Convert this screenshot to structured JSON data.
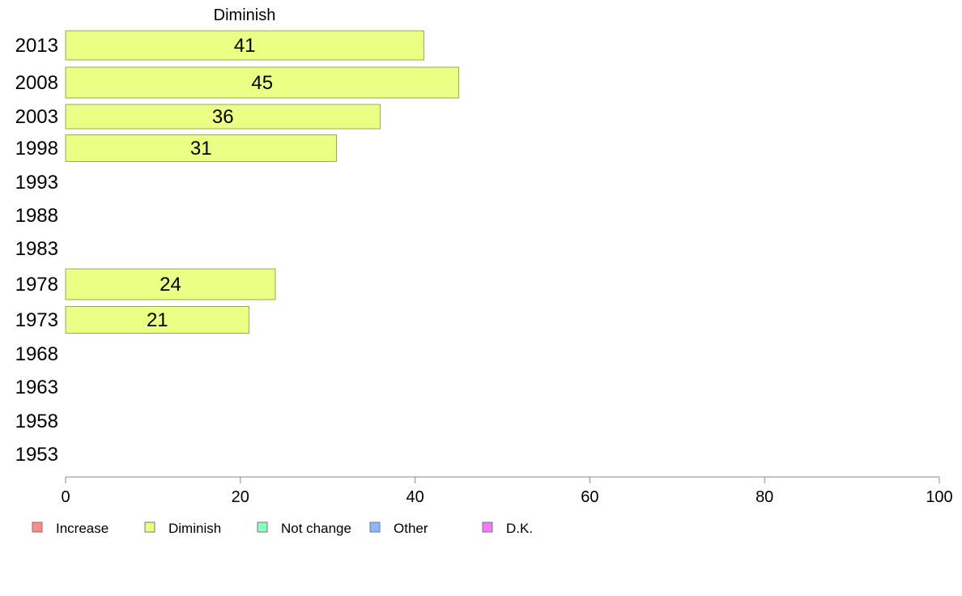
{
  "chart_data": {
    "type": "bar",
    "orientation": "horizontal",
    "title": "Diminish",
    "categories": [
      "2013",
      "2008",
      "2003",
      "1998",
      "1993",
      "1988",
      "1983",
      "1978",
      "1973",
      "1968",
      "1963",
      "1958",
      "1953"
    ],
    "series": [
      {
        "name": "Diminish",
        "color": "#ebff85",
        "values": [
          41,
          45,
          36,
          31,
          null,
          null,
          null,
          24,
          21,
          null,
          null,
          null,
          null
        ],
        "data_labels": [
          "41",
          "45",
          "36",
          "31",
          "",
          "",
          "",
          "24",
          "21",
          "",
          "",
          "",
          ""
        ]
      }
    ],
    "xlim": [
      0,
      100
    ],
    "xticks": [
      "0",
      "20",
      "40",
      "60",
      "80",
      "100"
    ],
    "grid": false,
    "legend_position": "bottom",
    "legend": [
      {
        "label": "Increase",
        "color": "#ff8a8a"
      },
      {
        "label": "Diminish",
        "color": "#ebff85"
      },
      {
        "label": "Not change",
        "color": "#8affc0"
      },
      {
        "label": "Other",
        "color": "#8ab8ff"
      },
      {
        "label": "D.K.",
        "color": "#f07aff"
      }
    ]
  }
}
